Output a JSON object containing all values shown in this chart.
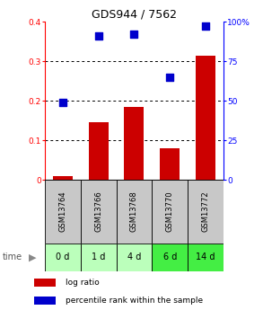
{
  "title": "GDS944 / 7562",
  "samples": [
    "GSM13764",
    "GSM13766",
    "GSM13768",
    "GSM13770",
    "GSM13772"
  ],
  "time_labels": [
    "0 d",
    "1 d",
    "4 d",
    "6 d",
    "14 d"
  ],
  "log_ratio": [
    0.01,
    0.145,
    0.185,
    0.08,
    0.315
  ],
  "percentile_rank": [
    49,
    91,
    92,
    65,
    97
  ],
  "bar_color": "#cc0000",
  "dot_color": "#0000cc",
  "ylim_left": [
    0,
    0.4
  ],
  "ylim_right": [
    0,
    100
  ],
  "yticks_left": [
    0,
    0.1,
    0.2,
    0.3,
    0.4
  ],
  "yticks_left_labels": [
    "0",
    "0.1",
    "0.2",
    "0.3",
    "0.4"
  ],
  "yticks_right": [
    0,
    25,
    50,
    75,
    100
  ],
  "yticks_right_labels": [
    "0",
    "25",
    "50",
    "75",
    "100%"
  ],
  "sample_box_color": "#c8c8c8",
  "time_colors": [
    "#bbffbb",
    "#bbffbb",
    "#bbffbb",
    "#44ee44",
    "#44ee44"
  ],
  "dot_size": 35,
  "bar_width": 0.55,
  "fig_width": 2.93,
  "fig_height": 3.45,
  "dpi": 100
}
